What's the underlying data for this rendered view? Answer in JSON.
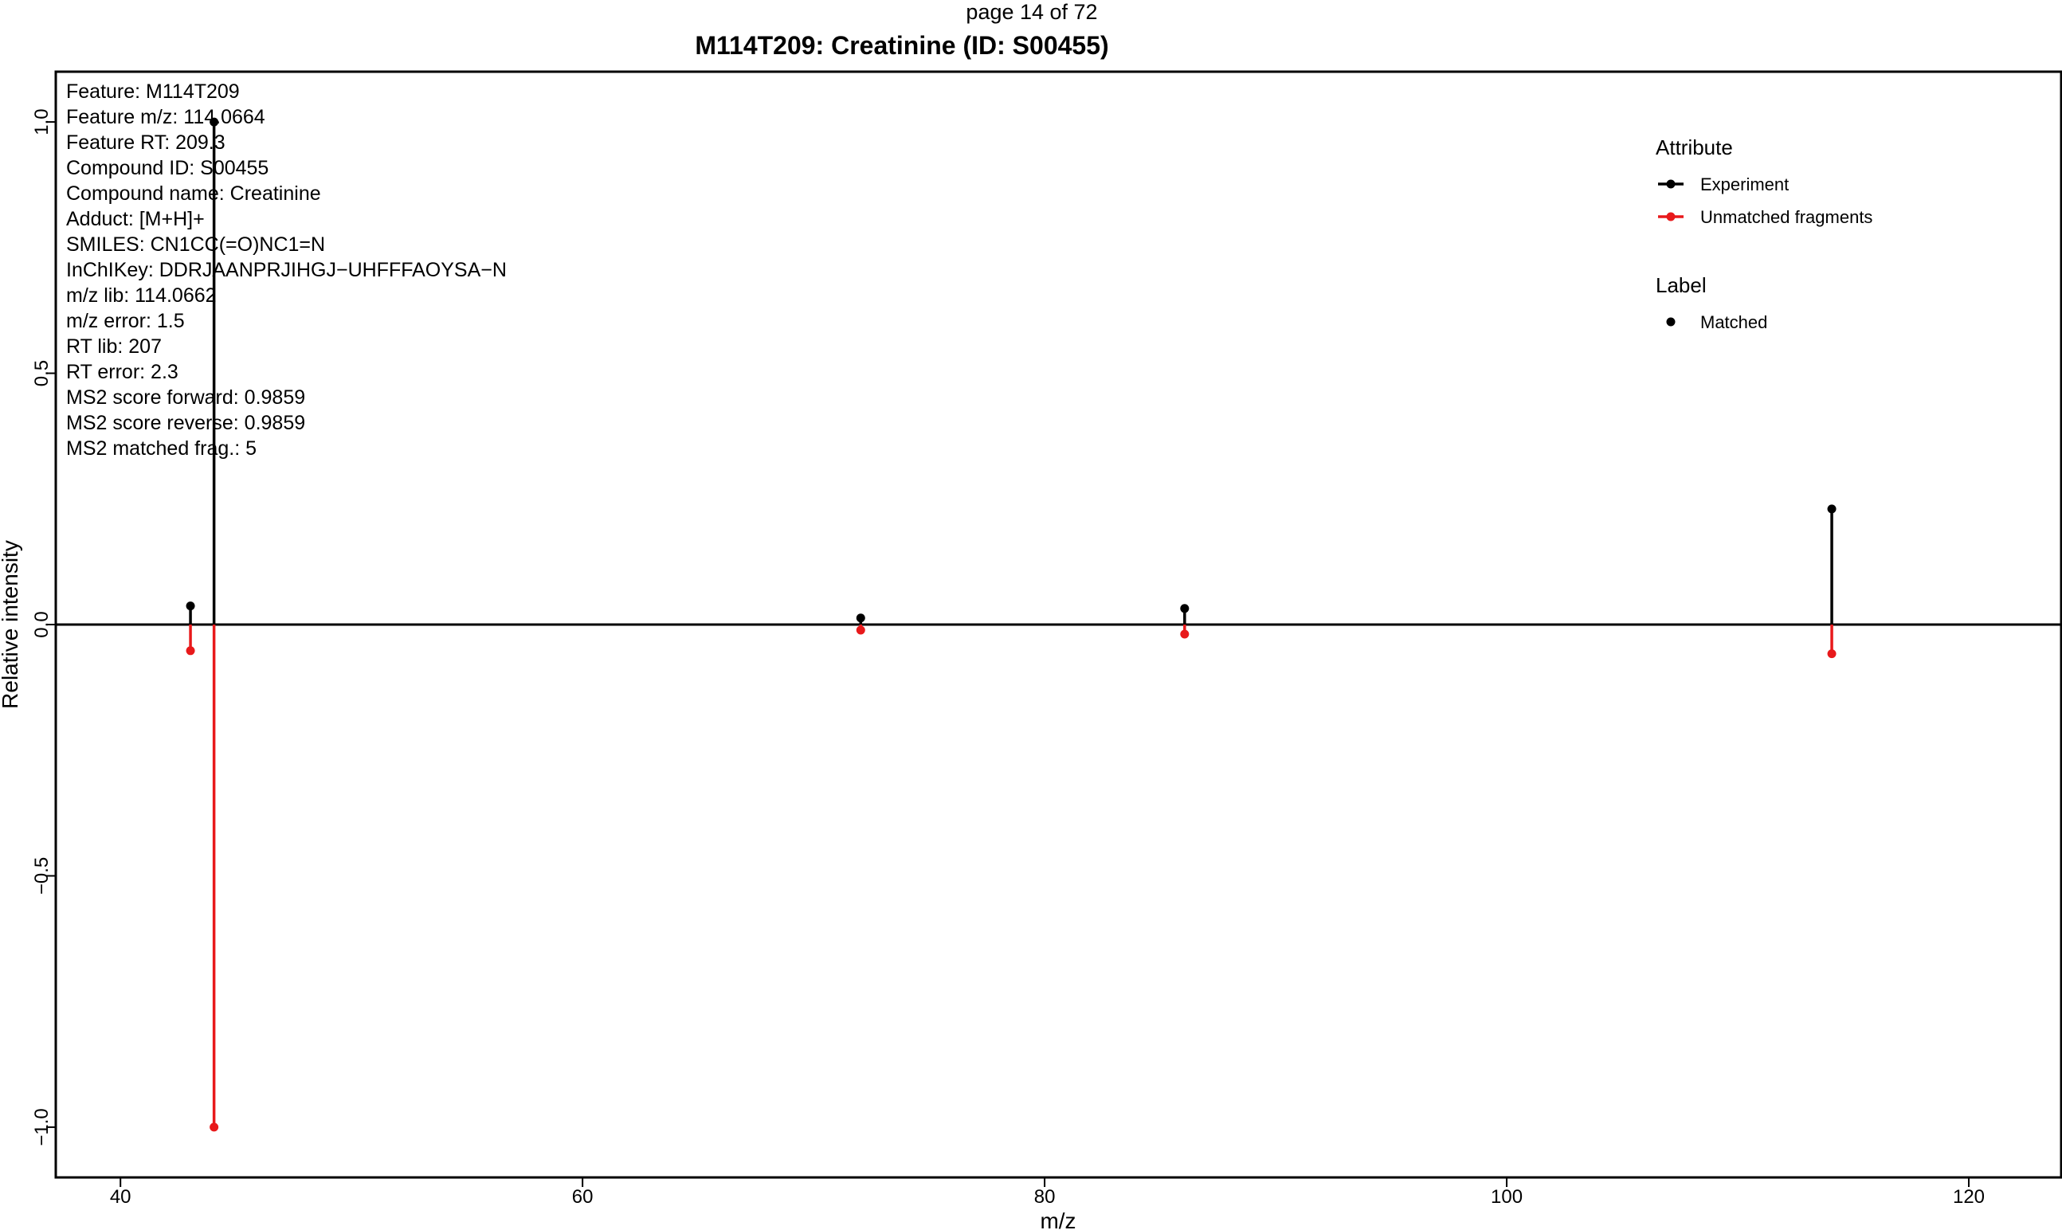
{
  "page_label": "page 14 of 72",
  "chart_data": {
    "type": "bar",
    "style": "mirrored stick spectrum",
    "title": "M114T209: Creatinine (ID: S00455)",
    "xlabel": "m/z",
    "ylabel": "Relative intensity",
    "xlim": [
      37.2,
      124.0
    ],
    "ylim": [
      -1.1,
      1.1
    ],
    "x_ticks": [
      40,
      60,
      80,
      100,
      120
    ],
    "x_tick_labels": [
      "40",
      "60",
      "80",
      "100",
      "120"
    ],
    "y_ticks": [
      -1.0,
      -0.5,
      0.0,
      0.5,
      1.0
    ],
    "y_tick_labels": [
      "−1.0",
      "−0.5",
      "0.0",
      "0.5",
      "1.0"
    ],
    "grid": false,
    "zero_line": true,
    "series": [
      {
        "name": "Experiment",
        "color": "#000000",
        "x": [
          43.03,
          44.05,
          72.04,
          86.06,
          114.07
        ],
        "values": [
          0.037,
          1.0,
          0.013,
          0.032,
          0.23
        ]
      },
      {
        "name": "Unmatched fragments",
        "color": "#e8191b",
        "x": [
          43.03,
          44.05,
          72.04,
          86.06,
          114.07
        ],
        "values": [
          -0.052,
          -1.0,
          -0.011,
          -0.019,
          -0.058
        ]
      }
    ],
    "annotation_lines": [
      "Feature: M114T209",
      "Feature m/z: 114.0664",
      "Feature RT: 209.3",
      "Compound ID: S00455",
      "Compound name: Creatinine",
      "Adduct: [M+H]+",
      "SMILES: CN1CC(=O)NC1=N",
      "InChIKey: DDRJAANPRJIHGJ−UHFFFAOYSA−N",
      "m/z lib: 114.0662",
      "m/z error: 1.5",
      "RT lib: 207",
      "RT error: 2.3",
      "MS2 score forward: 0.9859",
      "MS2 score reverse: 0.9859",
      "MS2 matched frag.: 5"
    ],
    "legend": {
      "position": "top-right",
      "groups": [
        {
          "title": "Attribute",
          "items": [
            {
              "label": "Experiment",
              "color": "#000000",
              "symbol": "line-point"
            },
            {
              "label": "Unmatched fragments",
              "color": "#e8191b",
              "symbol": "line-point"
            }
          ]
        },
        {
          "title": "Label",
          "items": [
            {
              "label": "Matched",
              "color": "#000000",
              "symbol": "point"
            }
          ]
        }
      ]
    }
  }
}
